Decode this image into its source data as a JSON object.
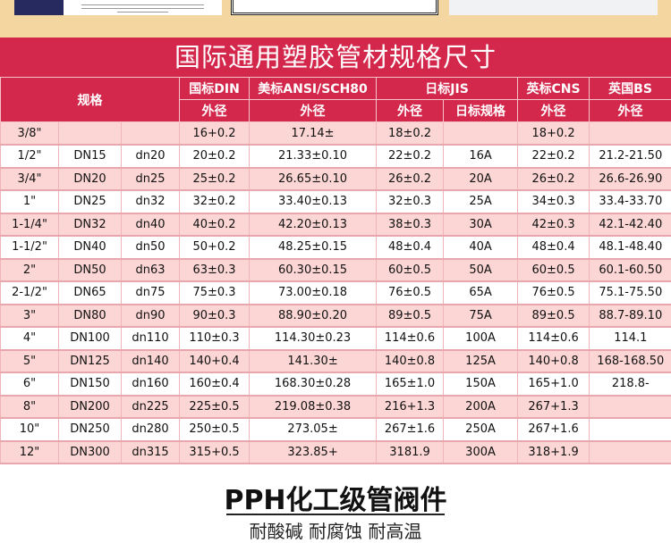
{
  "title": "国际通用塑胶管材规格尺寸",
  "colors": {
    "band": "#d3284b",
    "row_pink": "#fbd6d4",
    "top_bg": "#f3d6a0"
  },
  "headers": {
    "spec": "规格",
    "groups": [
      "国标DIN",
      "美标ANSI/SCH80",
      "日标JIS",
      "英标CNS",
      "英国BS"
    ],
    "sub": [
      "外径",
      "外径",
      "外径",
      "日标规格",
      "外径",
      "外径"
    ]
  },
  "rows": [
    [
      "3/8\"",
      "",
      "",
      "16+0.2",
      "17.14±",
      "18±0.2",
      "",
      "18+0.2",
      ""
    ],
    [
      "1/2\"",
      "DN15",
      "dn20",
      "20±0.2",
      "21.33±0.10",
      "22±0.2",
      "16A",
      "22±0.2",
      "21.2-21.50"
    ],
    [
      "3/4\"",
      "DN20",
      "dn25",
      "25±0.2",
      "26.65±0.10",
      "26±0.2",
      "20A",
      "26±0.2",
      "26.6-26.90"
    ],
    [
      "1\"",
      "DN25",
      "dn32",
      "32±0.2",
      "33.40±0.13",
      "32±0.3",
      "25A",
      "34±0.3",
      "33.4-33.70"
    ],
    [
      "1-1/4\"",
      "DN32",
      "dn40",
      "40±0.2",
      "42.20±0.13",
      "38±0.3",
      "30A",
      "42±0.3",
      "42.1-42.40"
    ],
    [
      "1-1/2\"",
      "DN40",
      "dn50",
      "50+0.2",
      "48.25±0.15",
      "48±0.4",
      "40A",
      "48±0.4",
      "48.1-48.40"
    ],
    [
      "2\"",
      "DN50",
      "dn63",
      "63±0.3",
      "60.30±0.15",
      "60±0.5",
      "50A",
      "60±0.5",
      "60.1-60.50"
    ],
    [
      "2-1/2\"",
      "DN65",
      "dn75",
      "75±0.3",
      "73.00±0.18",
      "76±0.5",
      "65A",
      "76±0.5",
      "75.1-75.50"
    ],
    [
      "3\"",
      "DN80",
      "dn90",
      "90±0.3",
      "88.90±0.20",
      "89±0.5",
      "75A",
      "89±0.5",
      "88.7-89.10"
    ],
    [
      "4\"",
      "DN100",
      "dn110",
      "110±0.3",
      "114.30±0.23",
      "114±0.6",
      "100A",
      "114±0.6",
      "114.1"
    ],
    [
      "5\"",
      "DN125",
      "dn140",
      "140+0.4",
      "141.30±",
      "140±0.8",
      "125A",
      "140+0.8",
      "168-168.50"
    ],
    [
      "6\"",
      "DN150",
      "dn160",
      "160±0.4",
      "168.30±0.28",
      "165±1.0",
      "150A",
      "165+1.0",
      "218.8-"
    ],
    [
      "8\"",
      "DN200",
      "dn225",
      "225±0.5",
      "219.08±0.38",
      "216+1.3",
      "200A",
      "267+1.3",
      ""
    ],
    [
      "10\"",
      "DN250",
      "dn280",
      "250±0.5",
      "273.05±",
      "267±1.6",
      "250A",
      "267+1.6",
      ""
    ],
    [
      "12\"",
      "DN300",
      "dn315",
      "315+0.5",
      "323.85+",
      "3181.9",
      "300A",
      "318+1.9",
      ""
    ]
  ],
  "bottom": {
    "title": "PPH化工级管阀件",
    "subtitle": "耐酸碱 耐腐蚀 耐高温"
  }
}
